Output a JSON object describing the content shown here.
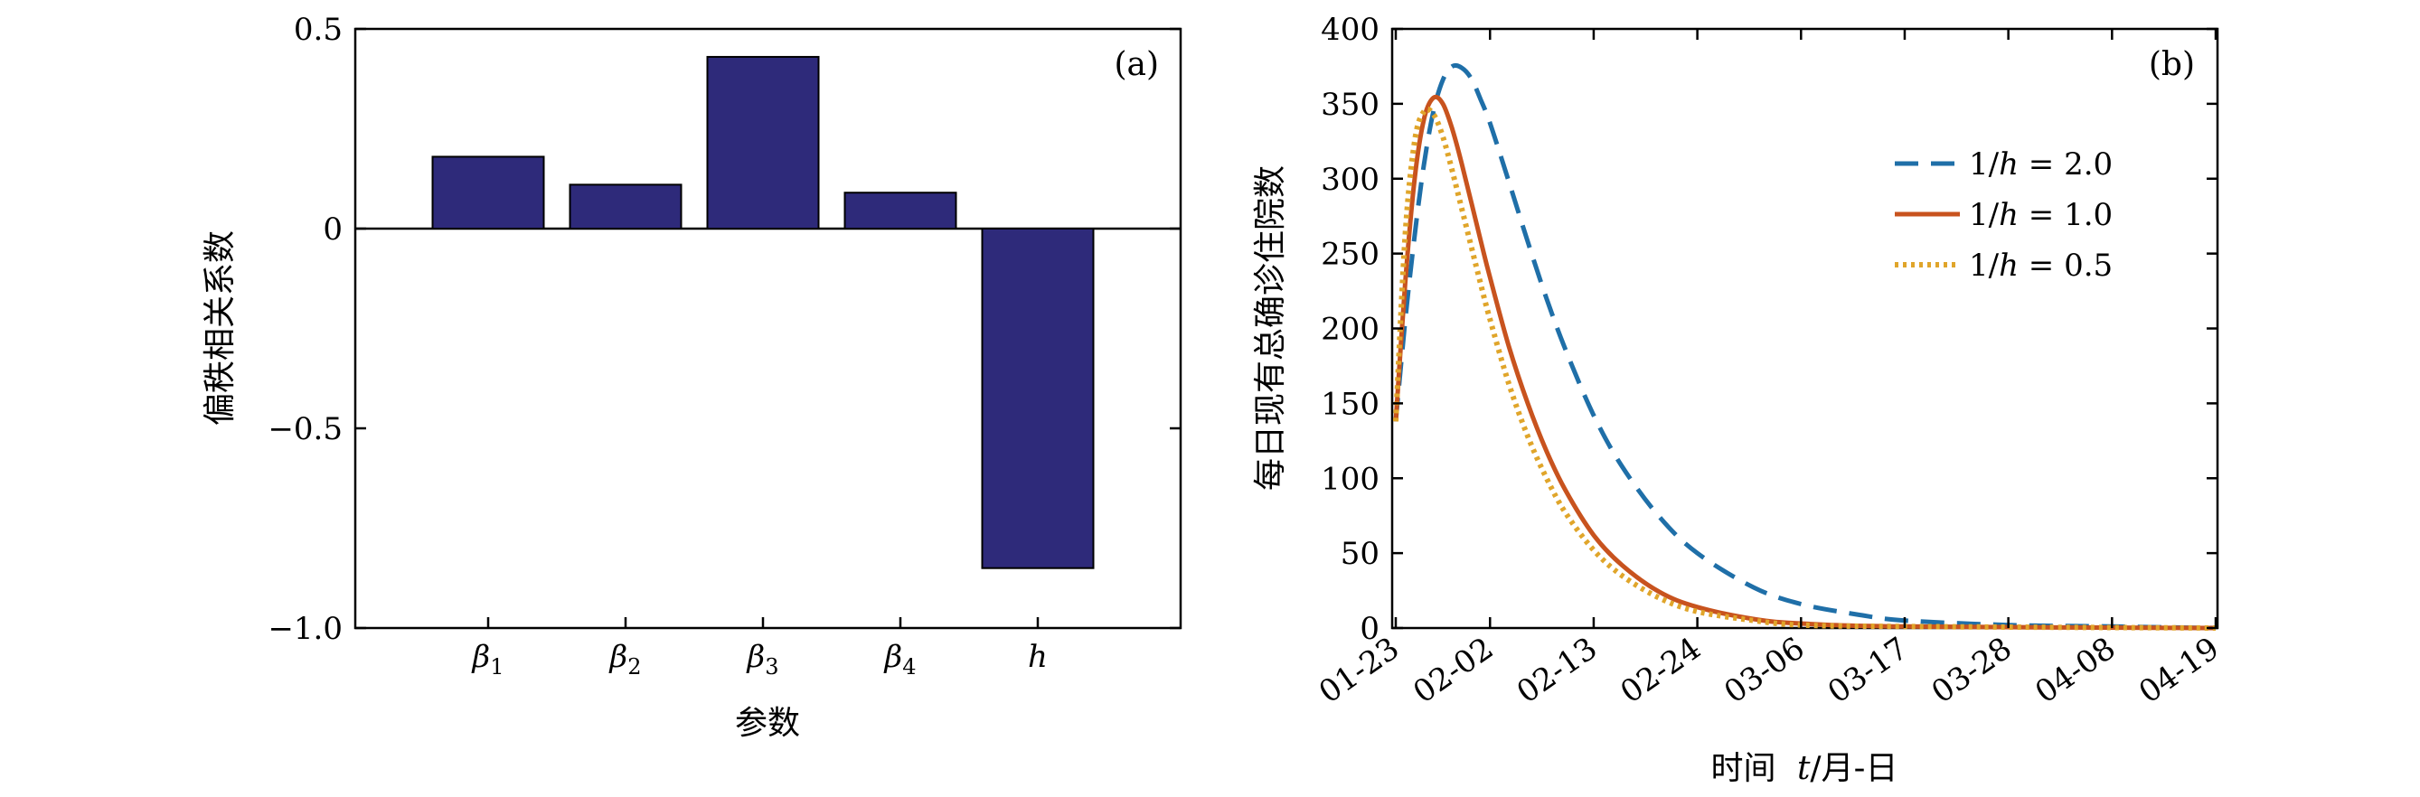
{
  "chart_data": [
    {
      "type": "bar",
      "panel_label": "(a)",
      "categories": [
        "β1",
        "β2",
        "β3",
        "β4",
        "h"
      ],
      "category_labels": [
        {
          "base": "β",
          "sub": "1"
        },
        {
          "base": "β",
          "sub": "2"
        },
        {
          "base": "β",
          "sub": "3"
        },
        {
          "base": "β",
          "sub": "4"
        },
        {
          "base": "h",
          "sub": ""
        }
      ],
      "values": [
        0.18,
        0.11,
        0.43,
        0.09,
        -0.85
      ],
      "xlabel": "参数",
      "ylabel": "偏秩相关系数",
      "ylim": [
        -1.0,
        0.5
      ],
      "yticks": [
        -1.0,
        -0.5,
        0,
        0.5
      ],
      "ytick_labels": [
        "−1.0",
        "−0.5",
        "0",
        "0.5"
      ],
      "bar_color": "#2e2a7a",
      "grid": false
    },
    {
      "type": "line",
      "panel_label": "(b)",
      "xlabel": "时间",
      "xlabel_var": "t",
      "xlabel_unit": "/月-日",
      "ylabel": "每日现有总确诊住院数",
      "ylim": [
        0,
        400
      ],
      "yticks": [
        0,
        50,
        100,
        150,
        200,
        250,
        300,
        350,
        400
      ],
      "xtick_labels": [
        "01-23",
        "02-02",
        "02-13",
        "02-24",
        "03-06",
        "03-17",
        "03-28",
        "04-08",
        "04-19"
      ],
      "xtick_dates": [
        "2020-01-23",
        "2020-02-02",
        "2020-02-13",
        "2020-02-24",
        "2020-03-06",
        "2020-03-17",
        "2020-03-28",
        "2020-04-08",
        "2020-04-19"
      ],
      "xlim": [
        "2020-01-23",
        "2020-04-19"
      ],
      "legend_position": "upper-right",
      "grid": false,
      "series": [
        {
          "name": "1/h = 2.0",
          "legend": {
            "pre": "1/",
            "var": "h",
            "post": " = 2.0"
          },
          "color": "#1f6fa8",
          "style": "dashed",
          "points": [
            [
              "2020-01-23",
              138
            ],
            [
              "2020-01-24",
              205
            ],
            [
              "2020-01-25",
              262
            ],
            [
              "2020-01-26",
              310
            ],
            [
              "2020-01-27",
              345
            ],
            [
              "2020-01-28",
              366
            ],
            [
              "2020-01-29",
              375
            ],
            [
              "2020-01-30",
              374
            ],
            [
              "2020-01-31",
              367
            ],
            [
              "2020-02-01",
              353
            ],
            [
              "2020-02-02",
              337
            ],
            [
              "2020-02-04",
              298
            ],
            [
              "2020-02-06",
              258
            ],
            [
              "2020-02-08",
              220
            ],
            [
              "2020-02-10",
              186
            ],
            [
              "2020-02-13",
              142
            ],
            [
              "2020-02-16",
              108
            ],
            [
              "2020-02-20",
              74
            ],
            [
              "2020-02-24",
              50
            ],
            [
              "2020-03-01",
              27
            ],
            [
              "2020-03-06",
              16
            ],
            [
              "2020-03-12",
              9
            ],
            [
              "2020-03-17",
              5
            ],
            [
              "2020-03-28",
              2
            ],
            [
              "2020-04-08",
              1
            ],
            [
              "2020-04-19",
              0
            ]
          ]
        },
        {
          "name": "1/h = 1.0",
          "legend": {
            "pre": "1/",
            "var": "h",
            "post": " = 1.0"
          },
          "color": "#c8531e",
          "style": "solid",
          "points": [
            [
              "2020-01-23",
              138
            ],
            [
              "2020-01-24",
              230
            ],
            [
              "2020-01-25",
              300
            ],
            [
              "2020-01-26",
              340
            ],
            [
              "2020-01-27",
              354
            ],
            [
              "2020-01-28",
              350
            ],
            [
              "2020-01-29",
              333
            ],
            [
              "2020-01-30",
              310
            ],
            [
              "2020-02-01",
              259
            ],
            [
              "2020-02-02",
              234
            ],
            [
              "2020-02-04",
              188
            ],
            [
              "2020-02-06",
              150
            ],
            [
              "2020-02-08",
              118
            ],
            [
              "2020-02-10",
              92
            ],
            [
              "2020-02-13",
              62
            ],
            [
              "2020-02-16",
              42
            ],
            [
              "2020-02-20",
              24
            ],
            [
              "2020-02-24",
              14
            ],
            [
              "2020-03-01",
              6
            ],
            [
              "2020-03-06",
              3
            ],
            [
              "2020-03-17",
              1
            ],
            [
              "2020-04-19",
              0
            ]
          ]
        },
        {
          "name": "1/h = 0.5",
          "legend": {
            "pre": "1/",
            "var": "h",
            "post": " = 0.5"
          },
          "color": "#e0a52a",
          "style": "dotted",
          "points": [
            [
              "2020-01-23",
              138
            ],
            [
              "2020-01-24",
              262
            ],
            [
              "2020-01-25",
              325
            ],
            [
              "2020-01-26",
              345
            ],
            [
              "2020-01-27",
              343
            ],
            [
              "2020-01-28",
              328
            ],
            [
              "2020-01-29",
              305
            ],
            [
              "2020-01-30",
              280
            ],
            [
              "2020-02-01",
              230
            ],
            [
              "2020-02-02",
              206
            ],
            [
              "2020-02-04",
              163
            ],
            [
              "2020-02-06",
              128
            ],
            [
              "2020-02-08",
              100
            ],
            [
              "2020-02-10",
              77
            ],
            [
              "2020-02-13",
              52
            ],
            [
              "2020-02-16",
              35
            ],
            [
              "2020-02-20",
              20
            ],
            [
              "2020-02-24",
              11
            ],
            [
              "2020-03-01",
              5
            ],
            [
              "2020-03-06",
              2
            ],
            [
              "2020-03-17",
              1
            ],
            [
              "2020-04-19",
              0
            ]
          ]
        }
      ]
    }
  ]
}
